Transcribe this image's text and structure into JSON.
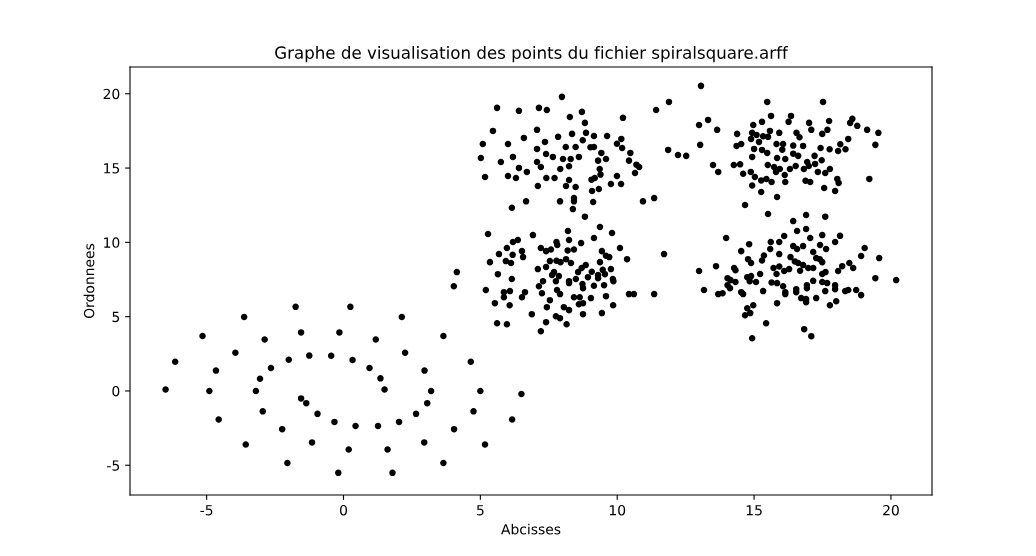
{
  "chart_data": {
    "type": "scatter",
    "title": "Graphe de visualisation des points du fichier spiralsquare.arff",
    "xlabel": "Abcisses",
    "ylabel": "Ordonnees",
    "xlim": [
      -7.8,
      21.5
    ],
    "ylim": [
      -7.0,
      21.8
    ],
    "xticks": [
      -5,
      0,
      5,
      10,
      15,
      20
    ],
    "yticks": [
      -5,
      0,
      5,
      10,
      15,
      20
    ],
    "grid": false,
    "marker": "circle",
    "series": [
      {
        "color": "#000000",
        "x": [
          1.5,
          1.35,
          0.95,
          0.33,
          -0.45,
          -1.25,
          -2.0,
          -2.65,
          -3.05,
          -3.2,
          -2.95,
          -2.24,
          -1.15,
          0.19,
          1.61,
          2.95,
          4.04,
          4.75,
          5.0,
          4.65,
          3.65,
          2.13,
          0.25,
          -1.75,
          -3.63,
          -5.15,
          -6.15,
          -6.5,
          -1.55,
          -1.36,
          -0.95,
          -0.33,
          0.44,
          1.26,
          2.03,
          2.65,
          3.06,
          3.2,
          2.96,
          2.25,
          1.18,
          -0.15,
          -1.55,
          -2.88,
          -3.95,
          -4.66,
          -4.9,
          -4.56,
          -3.57,
          -2.05,
          -0.19,
          1.79,
          3.65,
          5.17,
          6.16,
          6.5
        ],
        "values": [
          0.1,
          0.85,
          1.55,
          2.08,
          2.37,
          2.38,
          2.1,
          1.55,
          0.82,
          0.0,
          -1.37,
          -2.57,
          -3.46,
          -3.94,
          -3.94,
          -3.46,
          -2.57,
          -1.37,
          0.0,
          1.97,
          3.7,
          4.98,
          5.66,
          5.66,
          4.98,
          3.7,
          1.97,
          0.1,
          -0.5,
          -0.82,
          -1.54,
          -2.08,
          -2.36,
          -2.36,
          -2.08,
          -1.54,
          -0.82,
          0.0,
          1.37,
          2.57,
          3.46,
          3.94,
          3.94,
          3.46,
          2.57,
          1.37,
          0.0,
          -1.92,
          -3.6,
          -4.85,
          -5.51,
          -5.51,
          -4.85,
          -3.6,
          -1.92,
          -0.2
        ]
      },
      {
        "color": "#000000",
        "x": [
          7.98,
          5.61,
          6.41,
          7.14,
          7.43,
          8.27,
          8.71,
          8.82,
          10.21,
          11.42,
          11.89,
          11.86,
          12.22,
          12.52,
          5.46,
          5.09,
          5.02,
          5.17,
          5.75,
          6.19,
          6.01,
          6.59,
          7.07,
          7.07,
          6.41,
          6.01,
          6.3,
          6.7,
          7.07,
          7.21,
          7.36,
          7.4,
          7.84,
          7.65,
          8.02,
          7.92,
          7.41,
          7.1,
          7.71,
          8.12,
          8.35,
          8.48,
          8.3,
          8.6,
          8.24,
          8.24,
          8.13,
          8.48,
          8.74,
          8.86,
          9.02,
          9.15,
          9.15,
          9.42,
          9.3,
          9.59,
          9.63,
          9.99,
          10.15,
          10.18,
          10.48,
          10.43,
          10.7,
          10.8,
          10.65,
          9.99,
          10.14,
          9.77,
          9.36,
          9.39,
          9.18,
          9.06,
          9.33,
          9.08,
          9.12,
          8.42,
          8.42,
          8.38,
          8.82,
          7.91,
          6.67,
          6.15,
          10.94,
          11.35,
          5.28,
          6.92,
          8.2,
          9.37,
          9.81,
          9.15,
          8.68,
          8.24,
          7.78,
          7.81,
          7.21,
          7.4,
          7.58,
          8.19,
          8.42,
          6.37,
          6.19,
          5.97,
          5.68,
          6.52,
          6.18,
          6.56,
          5.93,
          6.12,
          5.35,
          4.14,
          4.03,
          5.64,
          5.2,
          6.15,
          5.86,
          6.08,
          5.86,
          5.53,
          6.07,
          6.63,
          6.52,
          6.88,
          5.61,
          5.97,
          7.21,
          7.4,
          7.1,
          7.54,
          7.78,
          7.93,
          7.4,
          7.69,
          7.62,
          7.87,
          7.29,
          7.76,
          7.14,
          7.25,
          7.8,
          7.91,
          7.54,
          7.43,
          8.05,
          8.24,
          7.76,
          7.91,
          8.15,
          8.13,
          8.31,
          8.24,
          8.24,
          8.49,
          8.57,
          8.7,
          8.85,
          9.07,
          8.93,
          8.73,
          8.75,
          8.42,
          8.63,
          8.6,
          8.75,
          8.75,
          9.04,
          9.15,
          9.3,
          9.3,
          9.55,
          9.47,
          9.77,
          9.37,
          9.44,
          9.59,
          9.71,
          9.84,
          9.86,
          9.52,
          9.59,
          9.85,
          9.44,
          10.1,
          10.36,
          10.43,
          10.61,
          11.35,
          11.71,
          13.06,
          12.99,
          13.32,
          13.65,
          13.03,
          13.5,
          13.69,
          14.67,
          15.48,
          17.52,
          15.51,
          16.9,
          17.6,
          15.84,
          15.26,
          14.38,
          14.36,
          14.53,
          14.26,
          14.49,
          14.6,
          14.88,
          14.97,
          15.29,
          15.62,
          14.93,
          15.09,
          14.89,
          15.0,
          14.93,
          15.33,
          15.51,
          15.58,
          15.29,
          15.48,
          15.18,
          15.03,
          14.93,
          15.26,
          15.45,
          15.64,
          15.5,
          15.73,
          15.92,
          15.82,
          16.06,
          16.03,
          16.26,
          16.35,
          15.84,
          16.14,
          15.94,
          15.8,
          16.12,
          16.14,
          16.31,
          16.43,
          16.43,
          16.55,
          16.66,
          16.79,
          16.61,
          16.52,
          16.94,
          16.82,
          17.01,
          17.09,
          17.21,
          17.23,
          17.0,
          16.88,
          17.05,
          17.33,
          17.47,
          17.43,
          17.49,
          17.68,
          17.74,
          17.56,
          17.6,
          17.77,
          17.76,
          17.96,
          18.04,
          18.09,
          18.07,
          18.15,
          18.34,
          18.44,
          18.51,
          18.59,
          18.77,
          19.13,
          19.54,
          19.43,
          19.21,
          16.43,
          16.57,
          16.9,
          17.49,
          18.14,
          17.96,
          17.05,
          16.1,
          15.61,
          15.92,
          16.43,
          16.57,
          16.79,
          17.41,
          17.63,
          17.16,
          19.04,
          18.91,
          19.57,
          19.43,
          20.19,
          13.98,
          14.82,
          14.53,
          15.59,
          15.92,
          15.36,
          15.29,
          14.78,
          14.89,
          12.99,
          13.61,
          13.17,
          13.69,
          13.85,
          14.03,
          14.27,
          14.32,
          14.14,
          14.03,
          14.32,
          14.12,
          14.53,
          14.6,
          14.75,
          14.89,
          14.84,
          15.07,
          15.22,
          15.33,
          14.75,
          14.97,
          14.86,
          14.67,
          15.44,
          14.93,
          15.64,
          15.84,
          15.71,
          15.82,
          15.92,
          16.1,
          16.28,
          16.33,
          16.49,
          16.61,
          16.68,
          16.79,
          16.98,
          17.16,
          17.27,
          17.4,
          17.49,
          17.49,
          17.61,
          17.16,
          16.93,
          16.93,
          16.54,
          16.54,
          16.06,
          16.14,
          16.14,
          15.84,
          16.72,
          16.9,
          16.9,
          17.27,
          17.49,
          17.67,
          17.6,
          17.96,
          17.96,
          17.77,
          18.0,
          18.07,
          18.22,
          18.48,
          18.62,
          18.33,
          18.44,
          18.73,
          18.91,
          16.83,
          17.09
        ],
        "values": [
          19.79,
          19.05,
          18.85,
          19.05,
          18.91,
          18.44,
          18.78,
          18.04,
          18.38,
          18.91,
          19.45,
          16.22,
          15.88,
          15.82,
          17.5,
          16.62,
          15.68,
          14.4,
          15.41,
          15.75,
          16.62,
          17.03,
          17.57,
          16.29,
          15.01,
          14.47,
          14.33,
          14.74,
          15.41,
          15.07,
          16.76,
          15.95,
          17.1,
          15.75,
          15.61,
          14.94,
          14.33,
          13.79,
          14.33,
          16.42,
          17.3,
          16.42,
          15.61,
          15.75,
          15.12,
          14.2,
          13.79,
          13.73,
          16.87,
          17.37,
          16.4,
          17.16,
          16.42,
          16.02,
          15.5,
          15.61,
          17.16,
          16.64,
          16.96,
          16.35,
          16.02,
          15.5,
          15.23,
          15.07,
          14.67,
          14.47,
          13.93,
          13.93,
          14.94,
          14.56,
          14.33,
          14.22,
          13.59,
          13.46,
          12.72,
          12.98,
          12.76,
          12.24,
          11.73,
          12.76,
          12.76,
          12.33,
          12.76,
          12.98,
          10.56,
          10.49,
          10.76,
          11.03,
          10.63,
          10.29,
          9.95,
          10.16,
          10.02,
          9.82,
          9.62,
          9.41,
          9.52,
          9.46,
          9.52,
          10.16,
          10.02,
          9.62,
          9.21,
          9.41,
          9.16,
          9.01,
          8.74,
          8.61,
          8.67,
          8.0,
          7.05,
          7.86,
          6.79,
          7.53,
          6.65,
          6.72,
          6.31,
          5.91,
          5.77,
          6.65,
          6.31,
          5.17,
          4.56,
          4.49,
          4.02,
          4.63,
          8.2,
          8.74,
          8.76,
          8.67,
          8.34,
          8.0,
          7.8,
          7.73,
          7.39,
          7.39,
          7.05,
          6.58,
          6.79,
          6.52,
          6.11,
          5.64,
          5.64,
          5.44,
          5.03,
          4.9,
          4.49,
          8.87,
          8.61,
          7.39,
          7.26,
          7.53,
          8.0,
          8.27,
          8.47,
          8.02,
          7.66,
          7.19,
          6.92,
          6.31,
          6.31,
          5.84,
          5.91,
          5.17,
          6.25,
          7.08,
          7.59,
          7.8,
          7.86,
          8.15,
          8.2,
          8.67,
          9.41,
          9.1,
          9.01,
          7.53,
          7.39,
          7.12,
          6.38,
          5.77,
          5.24,
          9.62,
          8.87,
          6.52,
          6.52,
          6.52,
          9.21,
          20.53,
          17.9,
          18.24,
          17.57,
          16.56,
          15.21,
          14.74,
          12.51,
          19.45,
          19.45,
          11.91,
          11.84,
          11.73,
          13.05,
          13.39,
          17.3,
          16.49,
          16.62,
          15.21,
          15.25,
          14.62,
          14.74,
          17.9,
          18.11,
          18.51,
          17.37,
          17.23,
          16.96,
          16.29,
          15.75,
          17.14,
          17.1,
          17.5,
          16.22,
          16.02,
          16.76,
          14.4,
          13.83,
          14.17,
          14.26,
          14.06,
          15.21,
          15.07,
          17.37,
          16.62,
          16.62,
          16.24,
          18.11,
          18.51,
          15.68,
          15.61,
          14.94,
          14.74,
          14.53,
          14.06,
          14.94,
          16.51,
          15.97,
          17.37,
          17.07,
          16.49,
          15.82,
          15.14,
          15.41,
          14.94,
          18.04,
          17.57,
          15.82,
          15.28,
          15.14,
          14.15,
          14.06,
          14.74,
          15.53,
          16.35,
          17.3,
          17.57,
          18.17,
          13.66,
          14.67,
          14.94,
          16.27,
          13.46,
          14.27,
          14.0,
          16.15,
          16.6,
          16.27,
          16.96,
          18.04,
          18.31,
          17.84,
          17.57,
          17.37,
          16.56,
          14.27,
          11.43,
          10.76,
          10.9,
          10.49,
          10.44,
          10.02,
          10.29,
          10.43,
          10.02,
          10.02,
          9.75,
          9.55,
          9.75,
          9.82,
          9.55,
          9.35,
          9.62,
          9.08,
          8.94,
          7.59,
          7.46,
          10.29,
          9.88,
          9.41,
          9.55,
          9.21,
          9.12,
          8.78,
          8.87,
          8.61,
          8.07,
          8.4,
          6.79,
          6.52,
          6.58,
          7.59,
          8.27,
          8.13,
          7.46,
          7.12,
          7.33,
          6.92,
          6.65,
          6.52,
          7.66,
          7.73,
          7.39,
          7.33,
          7.87,
          6.72,
          5.57,
          5.77,
          5.24,
          5.1,
          4.56,
          3.55,
          7.3,
          7.26,
          8.27,
          7.87,
          8.38,
          8.07,
          8.2,
          9.01,
          8.72,
          8.61,
          8.09,
          8.47,
          8.27,
          8.27,
          8.94,
          8.87,
          8.67,
          7.87,
          8.0,
          7.41,
          7.12,
          6.92,
          6.85,
          6.65,
          7.05,
          6.65,
          6.52,
          5.91,
          6.25,
          6.18,
          5.97,
          6.25,
          7.33,
          7.26,
          6.72,
          7.12,
          6.85,
          5.77,
          6.04,
          8.07,
          8.4,
          8.61,
          8.27,
          6.72,
          6.79,
          6.79,
          6.45,
          4.16,
          3.69
        ]
      }
    ]
  }
}
